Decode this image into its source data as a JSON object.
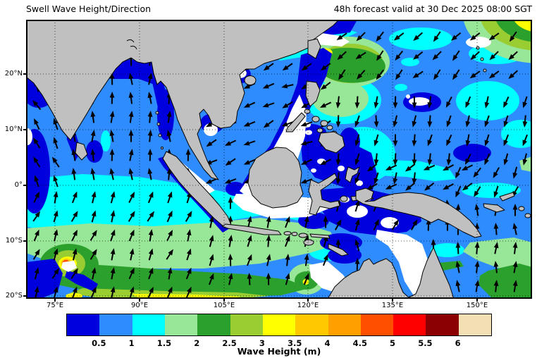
{
  "figure": {
    "title_left": "Swell Wave Height/Direction",
    "title_right": "48h forecast valid at 30 Dec 2025 08:00 SGT"
  },
  "axes": {
    "lat_labels": [
      "20°N",
      "10°N",
      "0°",
      "10°S",
      "20°S"
    ],
    "lon_labels": [
      "75°E",
      "90°E",
      "105°E",
      "120°E",
      "135°E",
      "150°E"
    ]
  },
  "colorbar": {
    "title": "Wave Height (m)",
    "tick_labels": [
      "0.5",
      "1",
      "1.5",
      "2",
      "2.5",
      "3",
      "3.5",
      "4",
      "4.5",
      "5",
      "5.5",
      "6"
    ],
    "tick_values": [
      0.5,
      1,
      1.5,
      2,
      2.5,
      3,
      3.5,
      4,
      4.5,
      5,
      5.5,
      6
    ],
    "unit": "m",
    "colors": [
      "#0000DE",
      "#2E8CFF",
      "#00FFFF",
      "#98E698",
      "#2CA02C",
      "#9ACD32",
      "#FFFF00",
      "#FFC800",
      "#FFA000",
      "#FF5000",
      "#FF0000",
      "#8B0000",
      "#F2DFB3"
    ]
  },
  "map": {
    "land_color": "#C0C0C0",
    "coast_color": "#000000",
    "arrow_color": "#000000",
    "calm_color": "#FFFFFF"
  }
}
